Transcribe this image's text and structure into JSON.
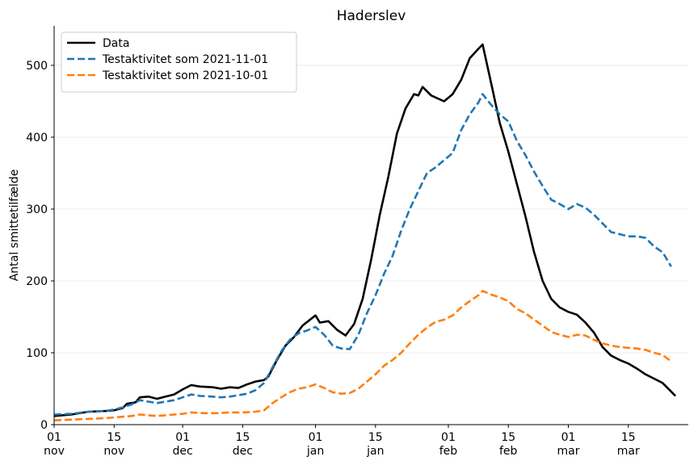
{
  "chart_data": {
    "type": "line",
    "title": "Haderslev",
    "xlabel": "",
    "ylabel": "Antal smittetilfælde",
    "ylim": [
      0,
      555
    ],
    "yticks": [
      0,
      100,
      200,
      300,
      400,
      500
    ],
    "xlim": [
      "2021-11-01",
      "2022-03-29"
    ],
    "xticks": [
      {
        "date": "2021-11-01",
        "label": [
          "01",
          "nov"
        ]
      },
      {
        "date": "2021-11-15",
        "label": [
          "15",
          "nov"
        ]
      },
      {
        "date": "2021-12-01",
        "label": [
          "01",
          "dec"
        ]
      },
      {
        "date": "2021-12-15",
        "label": [
          "15",
          "dec"
        ]
      },
      {
        "date": "2022-01-01",
        "label": [
          "01",
          "jan"
        ]
      },
      {
        "date": "2022-01-15",
        "label": [
          "15",
          "jan"
        ]
      },
      {
        "date": "2022-02-01",
        "label": [
          "01",
          "feb"
        ]
      },
      {
        "date": "2022-02-15",
        "label": [
          "15",
          "feb"
        ]
      },
      {
        "date": "2022-03-01",
        "label": [
          "01",
          "mar"
        ]
      },
      {
        "date": "2022-03-15",
        "label": [
          "15",
          "mar"
        ]
      }
    ],
    "grid": "horizontal",
    "legend_position": "top-left",
    "series": [
      {
        "name": "Data",
        "color": "#000000",
        "style": "solid",
        "points": [
          [
            "2021-11-01",
            12
          ],
          [
            "2021-11-05",
            14
          ],
          [
            "2021-11-09",
            18
          ],
          [
            "2021-11-13",
            19
          ],
          [
            "2021-11-15",
            20
          ],
          [
            "2021-11-17",
            23
          ],
          [
            "2021-11-18",
            29
          ],
          [
            "2021-11-20",
            31
          ],
          [
            "2021-11-21",
            38
          ],
          [
            "2021-11-23",
            39
          ],
          [
            "2021-11-25",
            36
          ],
          [
            "2021-11-27",
            39
          ],
          [
            "2021-11-29",
            42
          ],
          [
            "2021-12-01",
            49
          ],
          [
            "2021-12-03",
            55
          ],
          [
            "2021-12-05",
            53
          ],
          [
            "2021-12-08",
            52
          ],
          [
            "2021-12-10",
            50
          ],
          [
            "2021-12-12",
            52
          ],
          [
            "2021-12-14",
            51
          ],
          [
            "2021-12-16",
            56
          ],
          [
            "2021-12-18",
            60
          ],
          [
            "2021-12-20",
            62
          ],
          [
            "2021-12-21",
            67
          ],
          [
            "2021-12-23",
            90
          ],
          [
            "2021-12-25",
            110
          ],
          [
            "2021-12-27",
            122
          ],
          [
            "2021-12-29",
            138
          ],
          [
            "2022-01-01",
            152
          ],
          [
            "2022-01-02",
            142
          ],
          [
            "2022-01-04",
            144
          ],
          [
            "2022-01-06",
            132
          ],
          [
            "2022-01-08",
            124
          ],
          [
            "2022-01-10",
            140
          ],
          [
            "2022-01-12",
            175
          ],
          [
            "2022-01-14",
            230
          ],
          [
            "2022-01-16",
            292
          ],
          [
            "2022-01-18",
            345
          ],
          [
            "2022-01-20",
            405
          ],
          [
            "2022-01-22",
            440
          ],
          [
            "2022-01-24",
            460
          ],
          [
            "2022-01-25",
            458
          ],
          [
            "2022-01-26",
            470
          ],
          [
            "2022-01-28",
            458
          ],
          [
            "2022-01-31",
            450
          ],
          [
            "2022-02-02",
            460
          ],
          [
            "2022-02-04",
            480
          ],
          [
            "2022-02-06",
            510
          ],
          [
            "2022-02-08",
            523
          ],
          [
            "2022-02-09",
            529
          ],
          [
            "2022-02-11",
            475
          ],
          [
            "2022-02-13",
            420
          ],
          [
            "2022-02-15",
            380
          ],
          [
            "2022-02-17",
            335
          ],
          [
            "2022-02-19",
            290
          ],
          [
            "2022-02-21",
            240
          ],
          [
            "2022-02-23",
            200
          ],
          [
            "2022-02-25",
            175
          ],
          [
            "2022-02-27",
            163
          ],
          [
            "2022-03-01",
            157
          ],
          [
            "2022-03-03",
            153
          ],
          [
            "2022-03-05",
            142
          ],
          [
            "2022-03-07",
            128
          ],
          [
            "2022-03-09",
            108
          ],
          [
            "2022-03-11",
            96
          ],
          [
            "2022-03-13",
            90
          ],
          [
            "2022-03-15",
            85
          ],
          [
            "2022-03-17",
            78
          ],
          [
            "2022-03-19",
            70
          ],
          [
            "2022-03-21",
            64
          ],
          [
            "2022-03-23",
            58
          ],
          [
            "2022-03-24",
            52
          ],
          [
            "2022-03-26",
            40
          ]
        ]
      },
      {
        "name": "Testaktivitet som 2021-11-01",
        "color": "#1f77b4",
        "style": "dashed",
        "points": [
          [
            "2021-11-01",
            14
          ],
          [
            "2021-11-05",
            15
          ],
          [
            "2021-11-09",
            18
          ],
          [
            "2021-11-13",
            19
          ],
          [
            "2021-11-15",
            21
          ],
          [
            "2021-11-17",
            24
          ],
          [
            "2021-11-19",
            28
          ],
          [
            "2021-11-21",
            34
          ],
          [
            "2021-11-23",
            32
          ],
          [
            "2021-11-25",
            30
          ],
          [
            "2021-11-27",
            32
          ],
          [
            "2021-11-29",
            34
          ],
          [
            "2021-12-01",
            38
          ],
          [
            "2021-12-03",
            42
          ],
          [
            "2021-12-05",
            40
          ],
          [
            "2021-12-08",
            39
          ],
          [
            "2021-12-10",
            38
          ],
          [
            "2021-12-12",
            39
          ],
          [
            "2021-12-14",
            41
          ],
          [
            "2021-12-16",
            43
          ],
          [
            "2021-12-18",
            48
          ],
          [
            "2021-12-20",
            58
          ],
          [
            "2021-12-22",
            80
          ],
          [
            "2021-12-24",
            102
          ],
          [
            "2021-12-26",
            118
          ],
          [
            "2021-12-28",
            127
          ],
          [
            "2021-12-30",
            131
          ],
          [
            "2022-01-01",
            136
          ],
          [
            "2022-01-03",
            125
          ],
          [
            "2022-01-05",
            110
          ],
          [
            "2022-01-07",
            106
          ],
          [
            "2022-01-09",
            105
          ],
          [
            "2022-01-11",
            125
          ],
          [
            "2022-01-13",
            155
          ],
          [
            "2022-01-15",
            180
          ],
          [
            "2022-01-17",
            210
          ],
          [
            "2022-01-19",
            235
          ],
          [
            "2022-01-21",
            270
          ],
          [
            "2022-01-23",
            300
          ],
          [
            "2022-01-25",
            325
          ],
          [
            "2022-01-27",
            350
          ],
          [
            "2022-01-29",
            358
          ],
          [
            "2022-01-31",
            368
          ],
          [
            "2022-02-02",
            378
          ],
          [
            "2022-02-04",
            410
          ],
          [
            "2022-02-06",
            432
          ],
          [
            "2022-02-08",
            448
          ],
          [
            "2022-02-09",
            460
          ],
          [
            "2022-02-11",
            445
          ],
          [
            "2022-02-13",
            432
          ],
          [
            "2022-02-15",
            422
          ],
          [
            "2022-02-17",
            395
          ],
          [
            "2022-02-19",
            375
          ],
          [
            "2022-02-21",
            352
          ],
          [
            "2022-02-23",
            332
          ],
          [
            "2022-02-25",
            313
          ],
          [
            "2022-02-27",
            307
          ],
          [
            "2022-03-01",
            300
          ],
          [
            "2022-03-03",
            307
          ],
          [
            "2022-03-05",
            302
          ],
          [
            "2022-03-07",
            292
          ],
          [
            "2022-03-09",
            280
          ],
          [
            "2022-03-11",
            268
          ],
          [
            "2022-03-13",
            265
          ],
          [
            "2022-03-15",
            262
          ],
          [
            "2022-03-17",
            262
          ],
          [
            "2022-03-19",
            260
          ],
          [
            "2022-03-21",
            248
          ],
          [
            "2022-03-23",
            240
          ],
          [
            "2022-03-25",
            220
          ]
        ]
      },
      {
        "name": "Testaktivitet som 2021-10-01",
        "color": "#ff7f0e",
        "style": "dashed",
        "points": [
          [
            "2021-11-01",
            6
          ],
          [
            "2021-11-05",
            7
          ],
          [
            "2021-11-09",
            8
          ],
          [
            "2021-11-13",
            9
          ],
          [
            "2021-11-15",
            10
          ],
          [
            "2021-11-17",
            11
          ],
          [
            "2021-11-19",
            12
          ],
          [
            "2021-11-21",
            14
          ],
          [
            "2021-11-23",
            13
          ],
          [
            "2021-11-25",
            12
          ],
          [
            "2021-11-27",
            13
          ],
          [
            "2021-11-29",
            14
          ],
          [
            "2021-12-01",
            15
          ],
          [
            "2021-12-03",
            17
          ],
          [
            "2021-12-06",
            16
          ],
          [
            "2021-12-09",
            16
          ],
          [
            "2021-12-12",
            17
          ],
          [
            "2021-12-15",
            17
          ],
          [
            "2021-12-18",
            18
          ],
          [
            "2021-12-20",
            20
          ],
          [
            "2021-12-22",
            30
          ],
          [
            "2021-12-24",
            38
          ],
          [
            "2021-12-26",
            45
          ],
          [
            "2021-12-28",
            50
          ],
          [
            "2021-12-30",
            52
          ],
          [
            "2022-01-01",
            56
          ],
          [
            "2022-01-03",
            51
          ],
          [
            "2022-01-05",
            45
          ],
          [
            "2022-01-07",
            43
          ],
          [
            "2022-01-09",
            44
          ],
          [
            "2022-01-11",
            50
          ],
          [
            "2022-01-13",
            60
          ],
          [
            "2022-01-15",
            70
          ],
          [
            "2022-01-17",
            82
          ],
          [
            "2022-01-19",
            90
          ],
          [
            "2022-01-21",
            100
          ],
          [
            "2022-01-23",
            113
          ],
          [
            "2022-01-25",
            125
          ],
          [
            "2022-01-27",
            135
          ],
          [
            "2022-01-29",
            143
          ],
          [
            "2022-01-31",
            146
          ],
          [
            "2022-02-02",
            152
          ],
          [
            "2022-02-04",
            163
          ],
          [
            "2022-02-06",
            172
          ],
          [
            "2022-02-08",
            180
          ],
          [
            "2022-02-09",
            186
          ],
          [
            "2022-02-11",
            181
          ],
          [
            "2022-02-13",
            177
          ],
          [
            "2022-02-15",
            172
          ],
          [
            "2022-02-17",
            161
          ],
          [
            "2022-02-19",
            155
          ],
          [
            "2022-02-21",
            146
          ],
          [
            "2022-02-23",
            138
          ],
          [
            "2022-02-25",
            129
          ],
          [
            "2022-02-27",
            125
          ],
          [
            "2022-03-01",
            122
          ],
          [
            "2022-03-03",
            125
          ],
          [
            "2022-03-05",
            124
          ],
          [
            "2022-03-07",
            118
          ],
          [
            "2022-03-09",
            113
          ],
          [
            "2022-03-11",
            110
          ],
          [
            "2022-03-13",
            108
          ],
          [
            "2022-03-15",
            107
          ],
          [
            "2022-03-17",
            106
          ],
          [
            "2022-03-19",
            104
          ],
          [
            "2022-03-21",
            100
          ],
          [
            "2022-03-23",
            97
          ],
          [
            "2022-03-25",
            88
          ]
        ]
      }
    ]
  }
}
